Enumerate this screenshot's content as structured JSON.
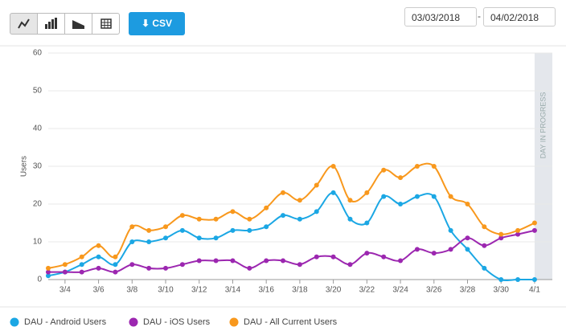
{
  "toolbar": {
    "csv": "CSV",
    "start_date": "03/03/2018",
    "separator": "-",
    "end_date": "04/02/2018"
  },
  "chart_data": {
    "type": "line",
    "y_label": "Users",
    "annotation": "DAY IN PROGRESS",
    "categories": [
      null,
      "3/4",
      null,
      "3/6",
      null,
      "3/8",
      null,
      "3/10",
      null,
      "3/12",
      null,
      "3/14",
      null,
      "3/16",
      null,
      "3/18",
      null,
      "3/20",
      null,
      "3/22",
      null,
      "3/24",
      null,
      "3/26",
      null,
      "3/28",
      null,
      "3/30",
      null,
      "4/1"
    ],
    "series": [
      {
        "name": "DAU - Android Users",
        "color": "#1ba7e4",
        "values": [
          1,
          2,
          4,
          6,
          4,
          10,
          10,
          11,
          13,
          11,
          11,
          13,
          13,
          14,
          17,
          16,
          18,
          23,
          16,
          15,
          22,
          20,
          22,
          22,
          13,
          8,
          3,
          0,
          0,
          0
        ]
      },
      {
        "name": "DAU - iOS Users",
        "color": "#9c27b0",
        "values": [
          2,
          2,
          2,
          3,
          2,
          4,
          3,
          3,
          4,
          5,
          5,
          5,
          3,
          5,
          5,
          4,
          6,
          6,
          4,
          7,
          6,
          5,
          8,
          7,
          8,
          11,
          9,
          11,
          12,
          13
        ]
      },
      {
        "name": "DAU - All Current Users",
        "color": "#f8981d",
        "values": [
          3,
          4,
          6,
          9,
          6,
          14,
          13,
          14,
          17,
          16,
          16,
          18,
          16,
          19,
          23,
          21,
          25,
          30,
          21,
          23,
          29,
          27,
          30,
          30,
          22,
          20,
          14,
          12,
          13,
          15
        ]
      }
    ],
    "ylim": [
      0,
      60
    ],
    "yticks": [
      0,
      10,
      20,
      30,
      40,
      50,
      60
    ],
    "grid": true
  }
}
